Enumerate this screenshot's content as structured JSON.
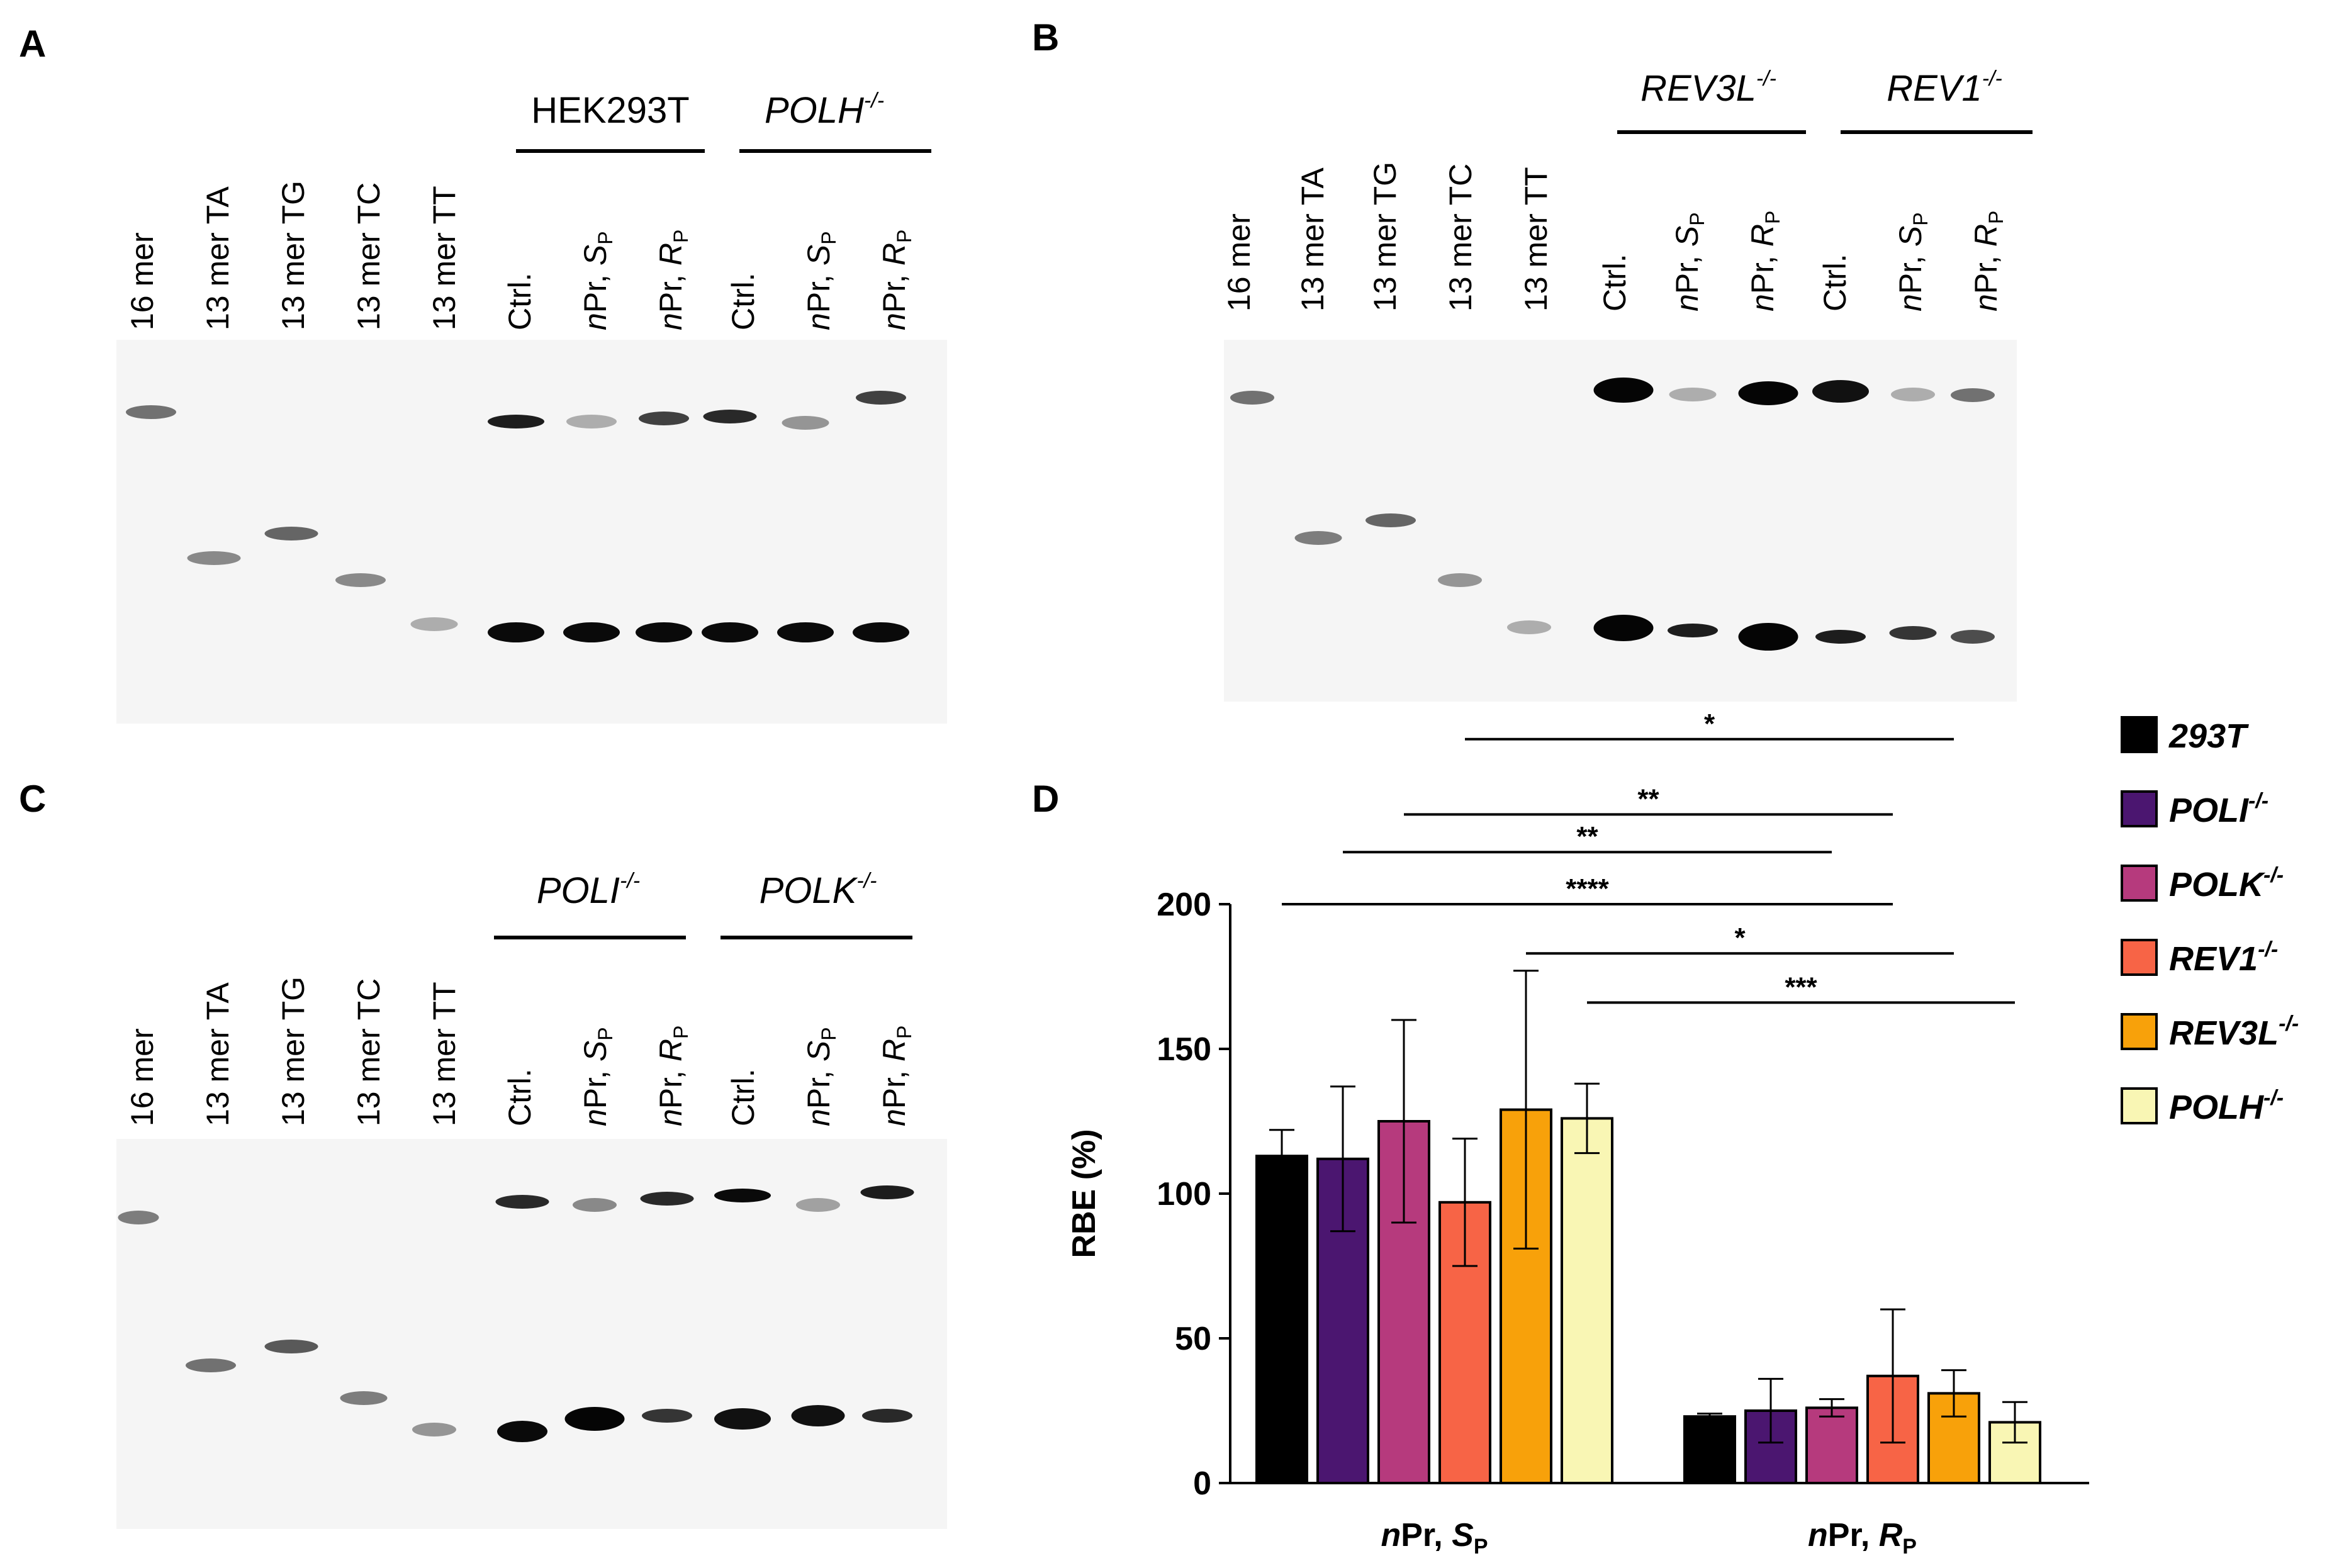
{
  "panels": [
    {
      "letter": "A",
      "lanes": [
        "16 mer",
        "13 mer TA",
        "13 mer TG",
        "13 mer TC",
        "13 mer TT",
        "Ctrl.",
        "nPr, SP",
        "nPr, RP",
        "Ctrl.",
        "nPr, SP",
        "nPr, RP"
      ],
      "groups": [
        {
          "base": "HEK293T",
          "sup": "",
          "italic": false
        },
        {
          "base": "POLH",
          "sup": "-/-",
          "italic": true
        }
      ]
    },
    {
      "letter": "B",
      "lanes": [
        "16 mer",
        "13 mer TA",
        "13 mer TG",
        "13 mer TC",
        "13 mer TT",
        "Ctrl.",
        "nPr, SP",
        "nPr, RP",
        "Ctrl.",
        "nPr, SP",
        "nPr, RP"
      ],
      "groups": [
        {
          "base": "REV3L",
          "sup": "-/-",
          "italic": true
        },
        {
          "base": "REV1",
          "sup": "-/-",
          "italic": true
        }
      ]
    },
    {
      "letter": "C",
      "lanes": [
        "16 mer",
        "13 mer TA",
        "13 mer TG",
        "13 mer TC",
        "13 mer TT",
        "Ctrl.",
        "nPr, SP",
        "nPr, RP",
        "Ctrl.",
        "nPr, SP",
        "nPr, RP"
      ],
      "groups": [
        {
          "base": "POLI",
          "sup": "-/-",
          "italic": true
        },
        {
          "base": "POLK",
          "sup": "-/-",
          "italic": true
        }
      ]
    },
    {
      "letter": "D"
    }
  ],
  "chart_data": {
    "type": "bar",
    "ylabel": "RBE (%)",
    "ylim": [
      0,
      200
    ],
    "yticks": [
      "0",
      "50",
      "100",
      "150",
      "200"
    ],
    "categories": [
      "nPr, SP",
      "nPr, RP"
    ],
    "series": [
      {
        "name": "293T",
        "sup": "",
        "color": "#000000",
        "values": [
          113,
          23
        ],
        "errors": [
          9,
          1
        ]
      },
      {
        "name": "POLI",
        "sup": "-/-",
        "color": "#4b1670",
        "values": [
          112,
          25
        ],
        "errors": [
          25,
          11
        ]
      },
      {
        "name": "POLK",
        "sup": "-/-",
        "color": "#b63a7d",
        "values": [
          125,
          26
        ],
        "errors": [
          35,
          3
        ]
      },
      {
        "name": "REV1",
        "sup": "-/-",
        "color": "#f76446",
        "values": [
          97,
          37
        ],
        "errors": [
          22,
          23
        ]
      },
      {
        "name": "REV3L",
        "sup": "-/-",
        "color": "#f8a10a",
        "values": [
          129,
          31
        ],
        "errors": [
          48,
          8
        ]
      },
      {
        "name": "POLH",
        "sup": "-/-",
        "color": "#f9f6b4",
        "values": [
          126,
          21
        ],
        "errors": [
          12,
          7
        ]
      }
    ],
    "significance": [
      {
        "from": [
          0,
          0
        ],
        "to": [
          1,
          3
        ],
        "label": "****",
        "y": 200
      },
      {
        "from": [
          0,
          1
        ],
        "to": [
          1,
          2
        ],
        "label": "**",
        "y": 218
      },
      {
        "from": [
          0,
          2
        ],
        "to": [
          1,
          3
        ],
        "label": "**",
        "y": 231
      },
      {
        "from": [
          0,
          3
        ],
        "to": [
          1,
          4
        ],
        "label": "*",
        "y": 257
      },
      {
        "from": [
          0,
          4
        ],
        "to": [
          1,
          4
        ],
        "label": "*",
        "y": 183
      },
      {
        "from": [
          0,
          5
        ],
        "to": [
          1,
          5
        ],
        "label": "***",
        "y": 166
      }
    ]
  }
}
